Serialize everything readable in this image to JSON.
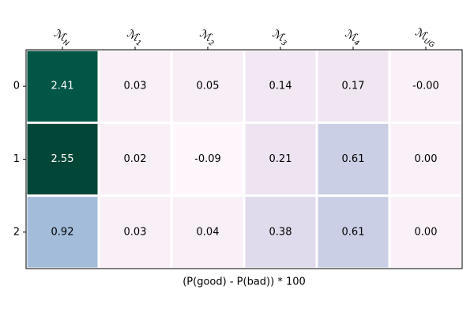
{
  "chart_data": {
    "type": "heatmap",
    "x_categories": [
      {
        "base": "ℳ",
        "sub": "N"
      },
      {
        "base": "ℳ",
        "sub": "1"
      },
      {
        "base": "ℳ",
        "sub": "2"
      },
      {
        "base": "ℳ",
        "sub": "3"
      },
      {
        "base": "ℳ",
        "sub": "4"
      },
      {
        "base": "ℳ",
        "sub": "UG"
      }
    ],
    "y_categories": [
      "0",
      "1",
      "2"
    ],
    "values": [
      [
        2.41,
        0.03,
        0.05,
        0.14,
        0.17,
        -0.0
      ],
      [
        2.55,
        0.02,
        -0.09,
        0.21,
        0.61,
        0.0
      ],
      [
        0.92,
        0.03,
        0.04,
        0.38,
        0.61,
        0.0
      ]
    ],
    "value_labels": [
      [
        "2.41",
        "0.03",
        "0.05",
        "0.14",
        "0.17",
        "-0.00"
      ],
      [
        "2.55",
        "0.02",
        "-0.09",
        "0.21",
        "0.61",
        "0.00"
      ],
      [
        "0.92",
        "0.03",
        "0.04",
        "0.38",
        "0.61",
        "0.00"
      ]
    ],
    "xlabel": "(P(good) - P(bad)) * 100",
    "colormap": [
      "#fff7fb",
      "#ece2f0",
      "#d0d1e6",
      "#a6bddb",
      "#67a9cf",
      "#3690c0",
      "#02818a",
      "#016c59",
      "#014636"
    ],
    "clim": [
      -0.09,
      2.55
    ]
  }
}
